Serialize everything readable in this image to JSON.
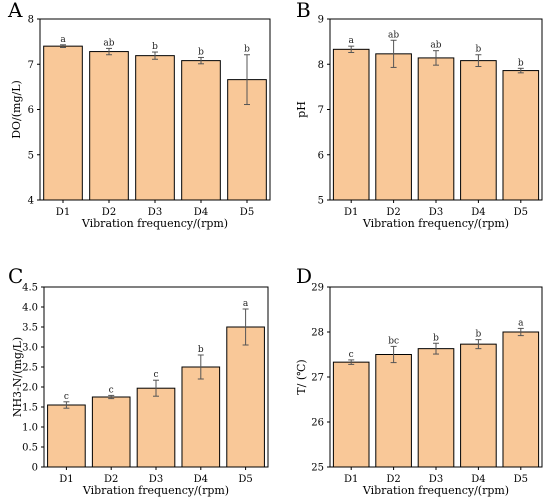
{
  "chart_data": [
    {
      "type": "bar",
      "panel": "A",
      "categories": [
        "D1",
        "D2",
        "D3",
        "D4",
        "D5"
      ],
      "values": [
        7.4,
        7.28,
        7.19,
        7.08,
        6.66
      ],
      "errors": [
        0.03,
        0.07,
        0.08,
        0.07,
        0.55
      ],
      "significance": [
        "a",
        "ab",
        "b",
        "b",
        "b"
      ],
      "xlabel": "Vibration frequency/(rpm)",
      "ylabel": "DO/(mg/L)",
      "ylim": [
        4,
        8
      ],
      "yticks": [
        4,
        5,
        6,
        7,
        8
      ],
      "bar_color": "#f9c898",
      "grid": false,
      "legend": false
    },
    {
      "type": "bar",
      "panel": "B",
      "categories": [
        "D1",
        "D2",
        "D3",
        "D4",
        "D5"
      ],
      "values": [
        8.33,
        8.23,
        8.14,
        8.08,
        7.86
      ],
      "errors": [
        0.07,
        0.3,
        0.16,
        0.13,
        0.05
      ],
      "significance": [
        "a",
        "ab",
        "ab",
        "b",
        "b"
      ],
      "xlabel": "Vibration frequency/(rpm)",
      "ylabel": "pH",
      "ylim": [
        5,
        9
      ],
      "yticks": [
        5,
        6,
        7,
        8,
        9
      ],
      "bar_color": "#f9c898",
      "grid": false,
      "legend": false
    },
    {
      "type": "bar",
      "panel": "C",
      "categories": [
        "D1",
        "D2",
        "D3",
        "D4",
        "D5"
      ],
      "values": [
        1.55,
        1.75,
        1.97,
        2.5,
        3.5
      ],
      "errors": [
        0.08,
        0.04,
        0.2,
        0.3,
        0.45
      ],
      "significance": [
        "c",
        "c",
        "c",
        "b",
        "a"
      ],
      "xlabel": "Vibration frequency/(rpm)",
      "ylabel": "NH3-N/(mg/L)",
      "ylim": [
        0,
        4.5
      ],
      "yticks": [
        0,
        0.5,
        1.0,
        1.5,
        2.0,
        2.5,
        3.0,
        3.5,
        4.0,
        4.5
      ],
      "ytick_labels": [
        "0",
        "0.5",
        "1.0",
        "1.5",
        "2.0",
        "2.5",
        "3.0",
        "3.5",
        "4.0",
        "4.5"
      ],
      "bar_color": "#f9c898",
      "grid": false,
      "legend": false
    },
    {
      "type": "bar",
      "panel": "D",
      "categories": [
        "D1",
        "D2",
        "D3",
        "D4",
        "D5"
      ],
      "values": [
        27.33,
        27.5,
        27.63,
        27.73,
        28.0
      ],
      "errors": [
        0.05,
        0.18,
        0.12,
        0.1,
        0.08
      ],
      "significance": [
        "c",
        "bc",
        "b",
        "b",
        "a"
      ],
      "xlabel": "Vibration frequency/(rpm)",
      "ylabel": "T/ (℃)",
      "ylim": [
        25,
        29
      ],
      "yticks": [
        25,
        26,
        27,
        28,
        29
      ],
      "bar_color": "#f9c898",
      "grid": false,
      "legend": false
    }
  ]
}
